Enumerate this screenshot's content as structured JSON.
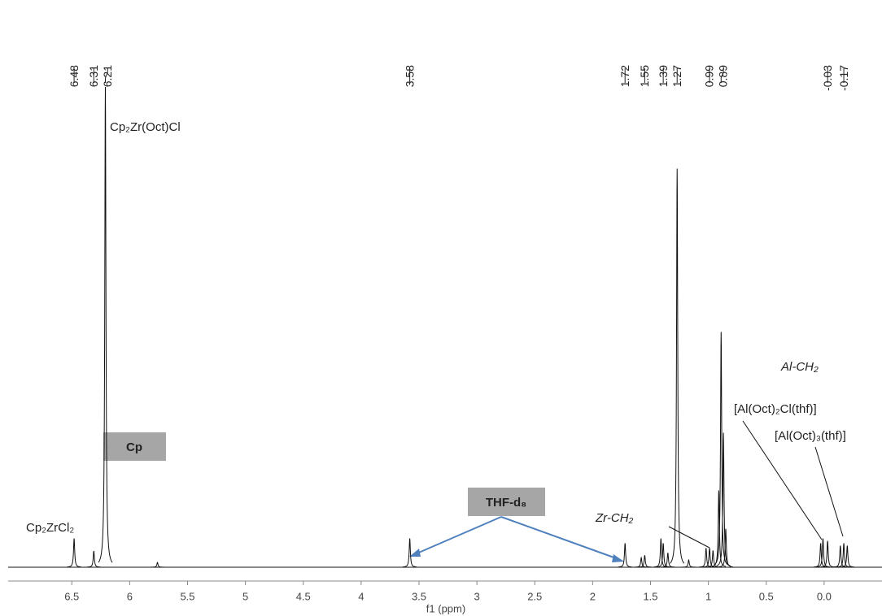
{
  "chart_data": {
    "type": "nmr",
    "xlabel": "f1 (ppm)",
    "xlim": [
      7.05,
      -0.5
    ],
    "xticks": [
      6.5,
      6.0,
      5.5,
      5.0,
      4.5,
      4.0,
      3.5,
      3.0,
      2.5,
      2.0,
      1.5,
      1.0,
      0.5,
      {
        "value": 0,
        "label": "0.0"
      }
    ],
    "ylim": [
      0,
      100
    ],
    "color": "#111111",
    "peak_labels": [
      6.48,
      6.31,
      6.21,
      3.58,
      1.72,
      1.55,
      1.39,
      1.27,
      0.99,
      0.89,
      -0.03,
      -0.17
    ],
    "x": [
      6.48,
      6.31,
      6.21,
      5.76,
      3.58,
      1.72,
      1.58,
      1.55,
      1.41,
      1.39,
      1.35,
      1.27,
      1.17,
      1.02,
      0.99,
      0.96,
      0.91,
      0.89,
      0.87,
      0.85,
      0.03,
      0.01,
      -0.03,
      -0.14,
      -0.17,
      -0.2
    ],
    "values": [
      6,
      3.4,
      100,
      1,
      6,
      5,
      2,
      2.5,
      6,
      5,
      3,
      83,
      1.5,
      4,
      4,
      3.5,
      16,
      49,
      28,
      8,
      5,
      6,
      5.5,
      4.5,
      5,
      4.5
    ],
    "annotations": [
      "Cp₂Zr(Oct)Cl",
      "Cp₂ZrCl₂",
      "Cp",
      "THF-d₈",
      "Zr-CH₂",
      "Al-CH₂",
      "[Al(Oct)₂Cl(thf)]",
      "[Al(Oct)₃(thf)]"
    ]
  }
}
